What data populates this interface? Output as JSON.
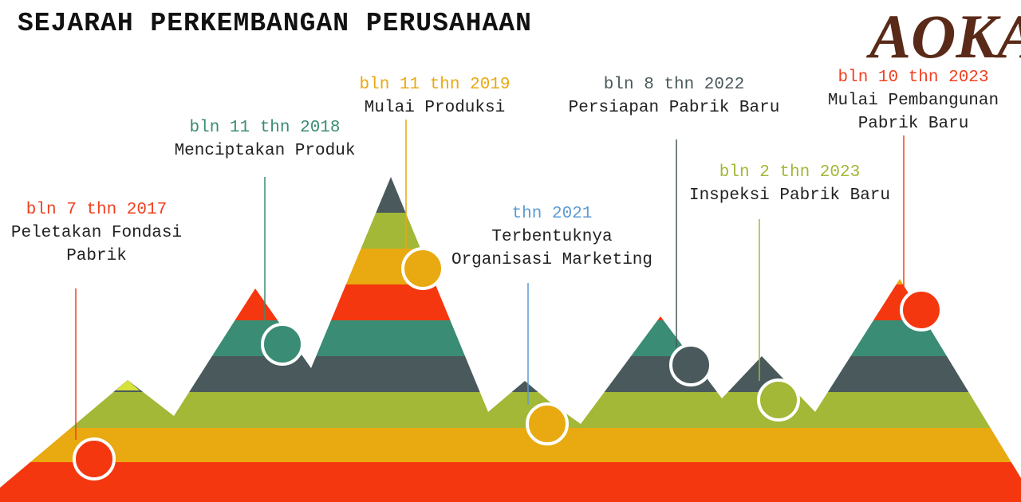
{
  "header": {
    "title": "SEJARAH PERKEMBANGAN PERUSAHAAN",
    "logo": "AOKA"
  },
  "milestones": [
    {
      "date": "bln 7 thn 2017",
      "lines": [
        "Peletakan Fondasi",
        "Pabrik"
      ]
    },
    {
      "date": "bln 11 thn 2018",
      "lines": [
        "Menciptakan Produk"
      ]
    },
    {
      "date": "bln 11 thn 2019",
      "lines": [
        "Mulai Produksi"
      ]
    },
    {
      "date": "thn 2021",
      "lines": [
        "Terbentuknya",
        "Organisasi Marketing"
      ]
    },
    {
      "date": "bln 8 thn 2022",
      "lines": [
        "Persiapan Pabrik Baru"
      ]
    },
    {
      "date": "bln 2 thn 2023",
      "lines": [
        "Inspeksi Pabrik Baru"
      ]
    },
    {
      "date": "bln 10 thn 2023",
      "lines": [
        "Mulai Pembangunan",
        "Pabrik Baru"
      ]
    }
  ]
}
